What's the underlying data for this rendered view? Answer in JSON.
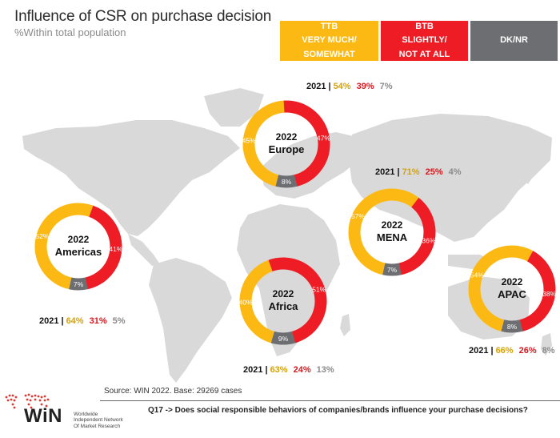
{
  "header": {
    "title": "Influence of CSR on purchase decision",
    "subtitle": "%Within total population"
  },
  "legend": {
    "ttb": "TTB\nVERY MUCH/\nSOMEWHAT",
    "btb": "BTB\nSLIGHTLY/\nNOT AT ALL",
    "dk": "DK/NR"
  },
  "colors": {
    "ttb": "#FDB913",
    "btb": "#EE1C25",
    "dk": "#6D6E71",
    "map": "#d9d9d9"
  },
  "chart_data": [
    {
      "type": "pie",
      "name": "Europe",
      "year": "2022",
      "categories": [
        "TTB",
        "BTB",
        "DK/NR"
      ],
      "values": [
        45,
        47,
        8
      ],
      "labels": [
        "45%",
        "47%",
        "8%"
      ],
      "comparison": {
        "year": "2021",
        "values": [
          54,
          39,
          7
        ],
        "labels": [
          "54%",
          "39%",
          "7%"
        ]
      }
    },
    {
      "type": "pie",
      "name": "Americas",
      "year": "2022",
      "categories": [
        "TTB",
        "BTB",
        "DK/NR"
      ],
      "values": [
        52,
        41,
        7
      ],
      "labels": [
        "52%",
        "41%",
        "7%"
      ],
      "comparison": {
        "year": "2021",
        "values": [
          64,
          31,
          5
        ],
        "labels": [
          "64%",
          "31%",
          "5%"
        ]
      }
    },
    {
      "type": "pie",
      "name": "Africa",
      "year": "2022",
      "categories": [
        "TTB",
        "BTB",
        "DK/NR"
      ],
      "values": [
        40,
        51,
        9
      ],
      "labels": [
        "40%",
        "51%",
        "9%"
      ],
      "comparison": {
        "year": "2021",
        "values": [
          63,
          24,
          13
        ],
        "labels": [
          "63%",
          "24%",
          "13%"
        ]
      }
    },
    {
      "type": "pie",
      "name": "MENA",
      "year": "2022",
      "categories": [
        "TTB",
        "BTB",
        "DK/NR"
      ],
      "values": [
        57,
        36,
        7
      ],
      "labels": [
        "57%",
        "36%",
        "7%"
      ],
      "comparison": {
        "year": "2021",
        "values": [
          71,
          25,
          4
        ],
        "labels": [
          "71%",
          "25%",
          "4%"
        ]
      }
    },
    {
      "type": "pie",
      "name": "APAC",
      "year": "2022",
      "categories": [
        "TTB",
        "BTB",
        "DK/NR"
      ],
      "values": [
        54,
        38,
        8
      ],
      "labels": [
        "54%",
        "38%",
        "8%"
      ],
      "comparison": {
        "year": "2021",
        "values": [
          66,
          26,
          8
        ],
        "labels": [
          "66%",
          "26%",
          "8%"
        ]
      }
    }
  ],
  "footer": {
    "source": "Source: WIN 2022. Base: 29269 cases",
    "question": "Q17 -> Does social responsible behaviors of companies/brands influence your purchase decisions?",
    "logo_name": "WiN",
    "logo_tagline": "Worldwide\nIndependent Network\nOf Market Research"
  }
}
